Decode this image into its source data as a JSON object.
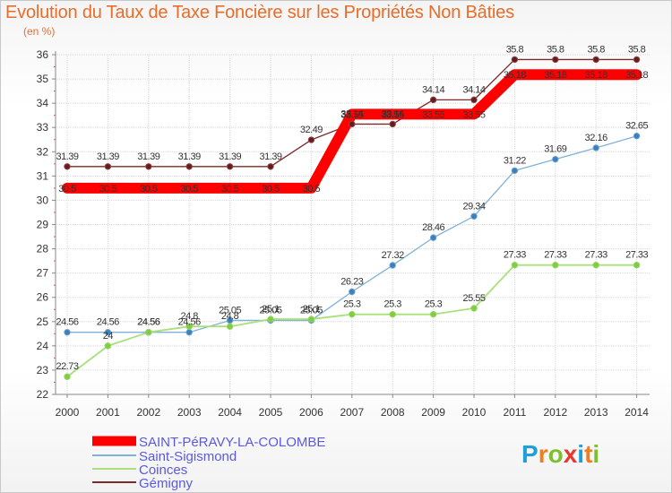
{
  "title": "Evolution du Taux de Taxe Foncière sur les Propriétés Non Bâties",
  "unit": "(en %)",
  "brand": {
    "letters": [
      {
        "ch": "P",
        "color": "#1e9fd8"
      },
      {
        "ch": "r",
        "color": "#f07d1a"
      },
      {
        "ch": "o",
        "color": "#7dbf2e"
      },
      {
        "ch": "x",
        "color": "#e8372c"
      },
      {
        "ch": "i",
        "color": "#1e9fd8"
      },
      {
        "ch": "t",
        "color": "#f07d1a"
      },
      {
        "ch": "i",
        "color": "#7dbf2e"
      }
    ]
  },
  "chart_data": {
    "type": "line",
    "title": "Evolution du Taux de Taxe Foncière sur les Propriétés Non Bâties",
    "ylabel": "(en %)",
    "xlabel": "",
    "ylim": [
      22,
      36
    ],
    "yticks": [
      "22",
      "23",
      "24",
      "25",
      "26",
      "27",
      "28",
      "29",
      "30",
      "31",
      "32",
      "33",
      "34",
      "35",
      "36"
    ],
    "categories": [
      "2000",
      "2001",
      "2002",
      "2003",
      "2004",
      "2005",
      "2006",
      "2007",
      "2008",
      "2009",
      "2010",
      "2011",
      "2012",
      "2013",
      "2014"
    ],
    "grid": true,
    "legend_position": "bottom-left",
    "series": [
      {
        "name": "SAINT-PéRAVY-LA-COLOMBE",
        "color": "#ff0000",
        "values": [
          30.5,
          30.5,
          30.5,
          30.5,
          30.5,
          30.5,
          30.5,
          33.55,
          33.55,
          33.55,
          33.55,
          35.18,
          35.18,
          35.18,
          35.18
        ],
        "labels": [
          "30.5",
          "30.5",
          "30.5",
          "30.5",
          "30.5",
          "30.5",
          "30.5",
          "33.55",
          "33.55",
          "33.55",
          "33.55",
          "35.18",
          "35.18",
          "35.18",
          "35.18"
        ]
      },
      {
        "name": "Saint-Sigismond",
        "color": "#7fb2d9",
        "values": [
          24.56,
          24.56,
          24.56,
          24.56,
          25.05,
          25.05,
          25.05,
          26.23,
          27.32,
          28.46,
          29.34,
          31.22,
          31.69,
          32.16,
          32.65
        ],
        "labels": [
          "24.56",
          "24.56",
          "24.56",
          "24.56",
          "25.05",
          "25.05",
          "25.05",
          "26.23",
          "27.32",
          "28.46",
          "29.34",
          "31.22",
          "31.69",
          "32.16",
          "32.65"
        ]
      },
      {
        "name": "Coinces",
        "color": "#a8e07a",
        "values": [
          22.73,
          24,
          24.56,
          24.8,
          24.8,
          25.1,
          25.1,
          25.3,
          25.3,
          25.3,
          25.55,
          27.33,
          27.33,
          27.33,
          27.33
        ],
        "labels": [
          "22.73",
          "24",
          "24.56",
          "24.8",
          "24.8",
          "25.1",
          "25.1",
          "25.3",
          "25.3",
          "25.3",
          "25.55",
          "27.33",
          "27.33",
          "27.33",
          "27.33"
        ]
      },
      {
        "name": "Gémigny",
        "color": "#7a2a2a",
        "values": [
          31.39,
          31.39,
          31.39,
          31.39,
          31.39,
          31.39,
          32.49,
          33.14,
          33.14,
          34.14,
          34.14,
          35.8,
          35.8,
          35.8,
          35.8
        ],
        "labels": [
          "31.39",
          "31.39",
          "31.39",
          "31.39",
          "31.39",
          "31.39",
          "32.49",
          "33.14",
          "33.14",
          "34.14",
          "34.14",
          "35.8",
          "35.8",
          "35.8",
          "35.8"
        ]
      }
    ]
  }
}
